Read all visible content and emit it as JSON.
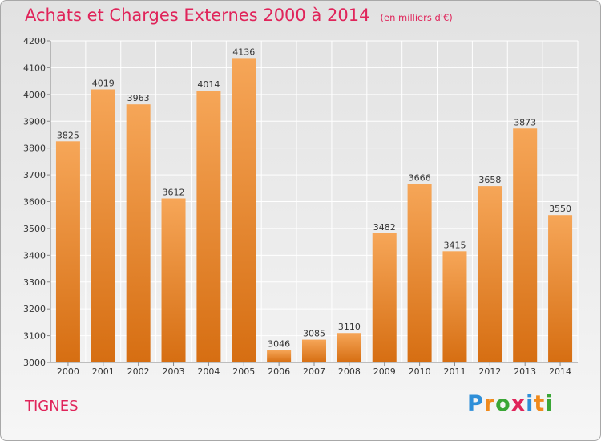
{
  "header": {
    "title": "Achats et Charges Externes 2000 à 2014",
    "subtitle": "(en milliers d'€)"
  },
  "footer": {
    "town": "TIGNES",
    "brand": "Proxiti",
    "brand_letters": [
      {
        "char": "P",
        "color": "#2f8fd8"
      },
      {
        "char": "r",
        "color": "#f08a1c"
      },
      {
        "char": "o",
        "color": "#3aa636"
      },
      {
        "char": "x",
        "color": "#e0245a"
      },
      {
        "char": "i",
        "color": "#2f8fd8"
      },
      {
        "char": "t",
        "color": "#f08a1c"
      },
      {
        "char": "i",
        "color": "#3aa636"
      }
    ]
  },
  "colors": {
    "accent": "#e0245a",
    "bar_light": "#f6a658",
    "bar_dark": "#d66e12",
    "grid": "#ffffff",
    "text": "#333333"
  },
  "chart_data": {
    "type": "bar",
    "title": "Achats et Charges Externes 2000 à 2014",
    "subtitle": "(en milliers d'€)",
    "categories": [
      "2000",
      "2001",
      "2002",
      "2003",
      "2004",
      "2005",
      "2006",
      "2007",
      "2008",
      "2009",
      "2010",
      "2011",
      "2012",
      "2013",
      "2014"
    ],
    "values": [
      3825,
      4019,
      3963,
      3612,
      4014,
      4136,
      3046,
      3085,
      3110,
      3482,
      3666,
      3415,
      3658,
      3873,
      3550
    ],
    "ylim": [
      3000,
      4200
    ],
    "yticks": [
      3000,
      3100,
      3200,
      3300,
      3400,
      3500,
      3600,
      3700,
      3800,
      3900,
      4000,
      4100,
      4200
    ],
    "grid": true,
    "legend": "none"
  }
}
